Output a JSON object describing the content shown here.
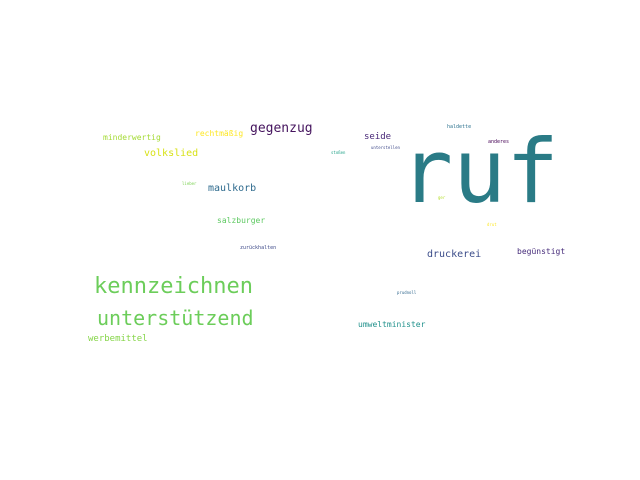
{
  "wordcloud": {
    "words": [
      {
        "id": "ruf",
        "text": "ruf",
        "color": "#2a7b86"
      },
      {
        "id": "kennzeichnen",
        "text": "kennzeichnen",
        "color": "#6ccd5a"
      },
      {
        "id": "unterstuetzend",
        "text": "unterstützend",
        "color": "#6ccd5a"
      },
      {
        "id": "gegenzug",
        "text": "gegenzug",
        "color": "#45145e"
      },
      {
        "id": "druckerei",
        "text": "druckerei",
        "color": "#3b4c89"
      },
      {
        "id": "maulkorb",
        "text": "maulkorb",
        "color": "#2f6b8e"
      },
      {
        "id": "volkslied",
        "text": "volkslied",
        "color": "#d8e219"
      },
      {
        "id": "werbemittel",
        "text": "werbemittel",
        "color": "#86d549"
      },
      {
        "id": "seide",
        "text": "seide",
        "color": "#482878"
      },
      {
        "id": "minderwertig",
        "text": "minderwertig",
        "color": "#a5db36"
      },
      {
        "id": "rechtmaessig",
        "text": "rechtmäßig",
        "color": "#fde725"
      },
      {
        "id": "salzburger",
        "text": "salzburger",
        "color": "#5ec962"
      },
      {
        "id": "beguenstigt",
        "text": "begünstigt",
        "color": "#472d7b"
      },
      {
        "id": "umweltminister",
        "text": "umweltminister",
        "color": "#21918c"
      },
      {
        "id": "zurueckhalten",
        "text": "zurückhalten",
        "color": "#3e4a89"
      },
      {
        "id": "haldette",
        "text": "haldette",
        "color": "#2c728e"
      },
      {
        "id": "anderes",
        "text": "anderes",
        "color": "#440154"
      },
      {
        "id": "unterstellen",
        "text": "unterstellen",
        "color": "#3e4989"
      },
      {
        "id": "stossen",
        "text": "stoßen",
        "color": "#1fa187"
      },
      {
        "id": "lieber",
        "text": "lieber",
        "color": "#7ad151"
      },
      {
        "id": "ger",
        "text": "ger",
        "color": "#b5de2b"
      },
      {
        "id": "drut",
        "text": "drut",
        "color": "#fde725"
      },
      {
        "id": "prudnoll",
        "text": "prudnoll",
        "color": "#31688e"
      }
    ]
  }
}
